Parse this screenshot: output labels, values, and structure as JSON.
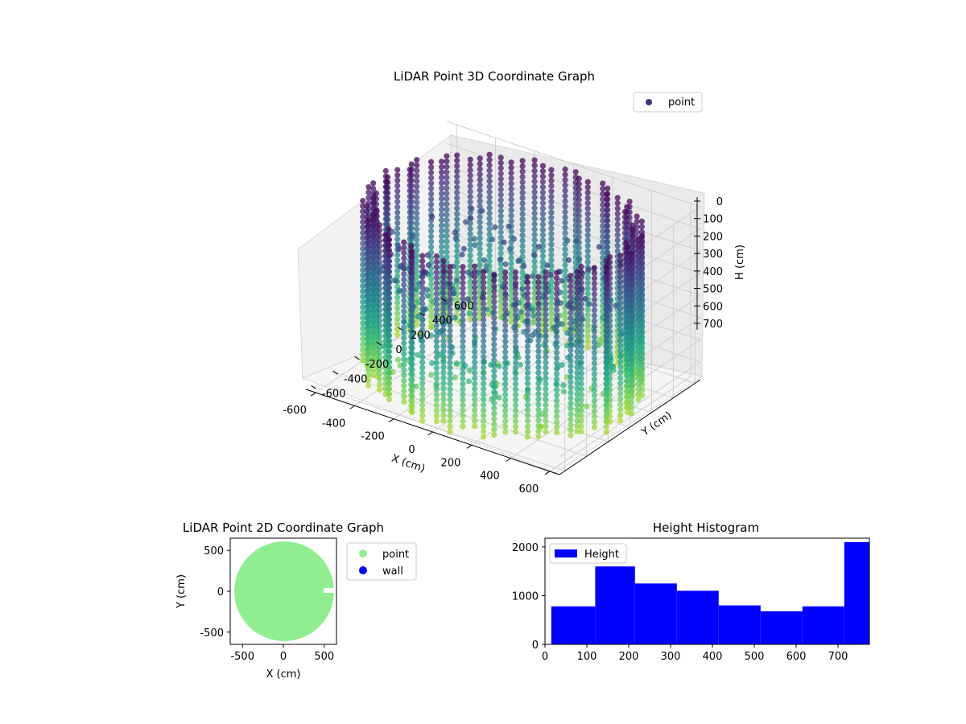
{
  "chart_data": [
    {
      "type": "scatter",
      "projection": "3d",
      "title": "LiDAR Point 3D Coordinate Graph",
      "xlabel": "X (cm)",
      "ylabel": "Y (cm)",
      "zlabel": "H (cm)",
      "xlim": [
        -650,
        650
      ],
      "ylim": [
        -650,
        650
      ],
      "zlim": [
        780,
        0
      ],
      "z_axis_inverted": true,
      "xticks": [
        -600,
        -400,
        -200,
        0,
        200,
        400,
        600
      ],
      "yticks": [
        -600,
        -400,
        -200,
        0,
        200,
        400,
        600
      ],
      "zticks": [
        0,
        100,
        200,
        300,
        400,
        500,
        600,
        700
      ],
      "colormap": "viridis",
      "grid": true,
      "legend": {
        "position": "top-right",
        "entries": [
          {
            "label": "point",
            "color": "#3b2f82"
          }
        ]
      },
      "point_cloud": {
        "shape": "cylinder-wall",
        "radius": 620,
        "h_min": 0,
        "h_max": 780
      }
    },
    {
      "type": "scatter",
      "title": "LiDAR Point 2D Coordinate Graph",
      "xlabel": "X (cm)",
      "ylabel": "Y (cm)",
      "xlim": [
        -650,
        650
      ],
      "ylim": [
        -650,
        650
      ],
      "xticks": [
        -500,
        0,
        500
      ],
      "yticks": [
        -500,
        0,
        500
      ],
      "legend": {
        "position": "outside-right",
        "entries": [
          {
            "label": "point",
            "color": "#90ee90"
          },
          {
            "label": "wall",
            "color": "#0000ff"
          }
        ]
      },
      "series": [
        {
          "name": "point",
          "color": "#90ee90",
          "shape": "filled-disk",
          "center": [
            10,
            0
          ],
          "radius": 610
        }
      ]
    },
    {
      "type": "bar",
      "title": "Height Histogram",
      "xlim": [
        0,
        775
      ],
      "ylim": [
        0,
        2180
      ],
      "xticks": [
        0,
        100,
        200,
        300,
        400,
        500,
        600,
        700
      ],
      "yticks": [
        0,
        1000,
        2000
      ],
      "bin_edges": [
        15,
        120,
        215,
        315,
        415,
        515,
        615,
        715,
        775
      ],
      "values": [
        780,
        1600,
        1250,
        1100,
        800,
        680,
        780,
        2100
      ],
      "color": "#0000ff",
      "legend": {
        "position": "top-left",
        "entries": [
          {
            "label": "Height",
            "color": "#0000ff"
          }
        ]
      }
    }
  ]
}
